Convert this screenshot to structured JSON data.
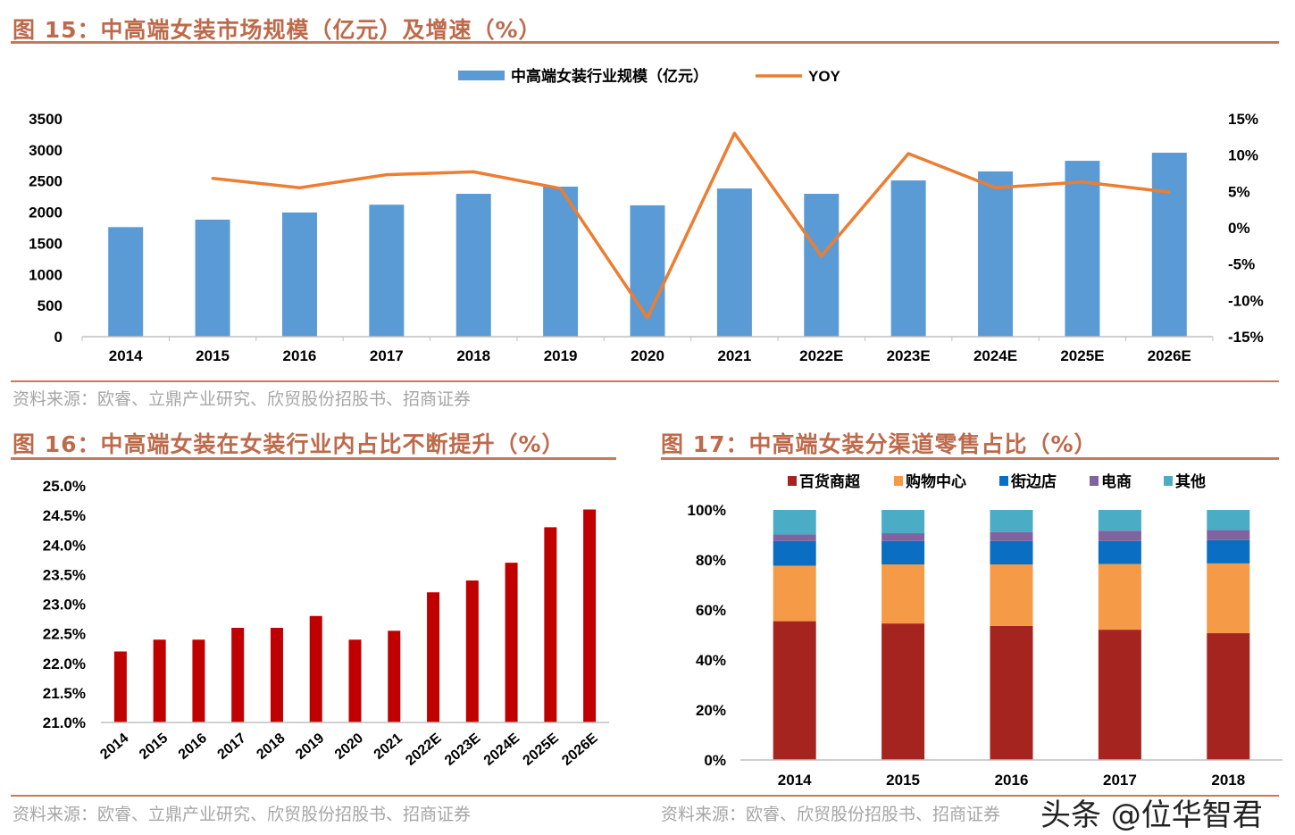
{
  "figures": {
    "fig15": {
      "title": "图 15：中高端女装市场规模（亿元）及增速（%）",
      "source": "资料来源：欧睿、立鼎产业研究、欣贸股份招股书、招商证券"
    },
    "fig16": {
      "title": "图 16：中高端女装在女装行业内占比不断提升（%）",
      "source": "资料来源：欧睿、立鼎产业研究、欣贸股份招股书、招商证券"
    },
    "fig17": {
      "title": "图 17：中高端女装分渠道零售占比（%）",
      "source": "资料来源：欧睿、欣贸股份招股书、招商证券"
    }
  },
  "watermark": "头条 @位华智君",
  "colors": {
    "title": "#bd6a4b",
    "rule": "#c47a5c",
    "bar_blue": "#5b9bd5",
    "line_orange": "#ed7d31",
    "bar_red": "#c00000"
  },
  "chart_data": [
    {
      "type": "bar+line",
      "categories": [
        "2014",
        "2015",
        "2016",
        "2017",
        "2018",
        "2019",
        "2020",
        "2021",
        "2022E",
        "2023E",
        "2024E",
        "2025E",
        "2026E"
      ],
      "series": [
        {
          "name": "中高端女装行业规模（亿元）",
          "type": "bar",
          "axis": "left",
          "color": "#5b9bd5",
          "values": [
            1760,
            1880,
            1995,
            2120,
            2295,
            2410,
            2110,
            2380,
            2295,
            2510,
            2655,
            2825,
            2955
          ]
        },
        {
          "name": "YOY",
          "type": "line",
          "axis": "right",
          "color": "#ed7d31",
          "values": [
            null,
            6.8,
            5.5,
            7.3,
            7.7,
            5.4,
            -12.4,
            13.0,
            -3.9,
            10.2,
            5.5,
            6.3,
            4.9
          ]
        }
      ],
      "yleft": {
        "ylim": [
          0,
          3500
        ],
        "ticks": [
          "0",
          "500",
          "1000",
          "1500",
          "2000",
          "2500",
          "3000",
          "3500"
        ]
      },
      "yright": {
        "ylim": [
          -15,
          15
        ],
        "ticks": [
          "-15%",
          "-10%",
          "-5%",
          "0%",
          "5%",
          "10%",
          "15%"
        ]
      },
      "legend": "top",
      "grid": false
    },
    {
      "type": "bar",
      "categories": [
        "2014",
        "2015",
        "2016",
        "2017",
        "2018",
        "2019",
        "2020",
        "2021",
        "2022E",
        "2023E",
        "2024E",
        "2025E",
        "2026E"
      ],
      "values": [
        22.2,
        22.4,
        22.4,
        22.6,
        22.6,
        22.8,
        22.4,
        22.55,
        23.2,
        23.4,
        23.7,
        24.3,
        24.6
      ],
      "color": "#c00000",
      "ylim": [
        21.0,
        25.0
      ],
      "yticks": [
        "21.0%",
        "21.5%",
        "22.0%",
        "22.5%",
        "23.0%",
        "23.5%",
        "24.0%",
        "24.5%",
        "25.0%"
      ],
      "grid": false
    },
    {
      "type": "stacked-bar",
      "categories": [
        "2014",
        "2015",
        "2016",
        "2017",
        "2018"
      ],
      "series": [
        {
          "name": "百货商超",
          "color": "#a52420",
          "values": [
            55.5,
            54.6,
            53.6,
            52.1,
            50.7
          ]
        },
        {
          "name": "购物中心",
          "color": "#f59a47",
          "values": [
            22.2,
            23.6,
            24.6,
            26.3,
            27.9
          ]
        },
        {
          "name": "街边店",
          "color": "#0a6fc2",
          "values": [
            9.9,
            9.4,
            9.4,
            9.2,
            9.3
          ]
        },
        {
          "name": "电商",
          "color": "#8064a2",
          "values": [
            2.6,
            3.1,
            3.5,
            4.1,
            4.1
          ]
        },
        {
          "name": "其他",
          "color": "#4bacc6",
          "values": [
            9.8,
            9.3,
            8.9,
            8.3,
            8.0
          ]
        }
      ],
      "ylim": [
        0,
        100
      ],
      "yticks": [
        "0%",
        "20%",
        "40%",
        "60%",
        "80%",
        "100%"
      ],
      "legend": "top",
      "grid": false
    }
  ]
}
